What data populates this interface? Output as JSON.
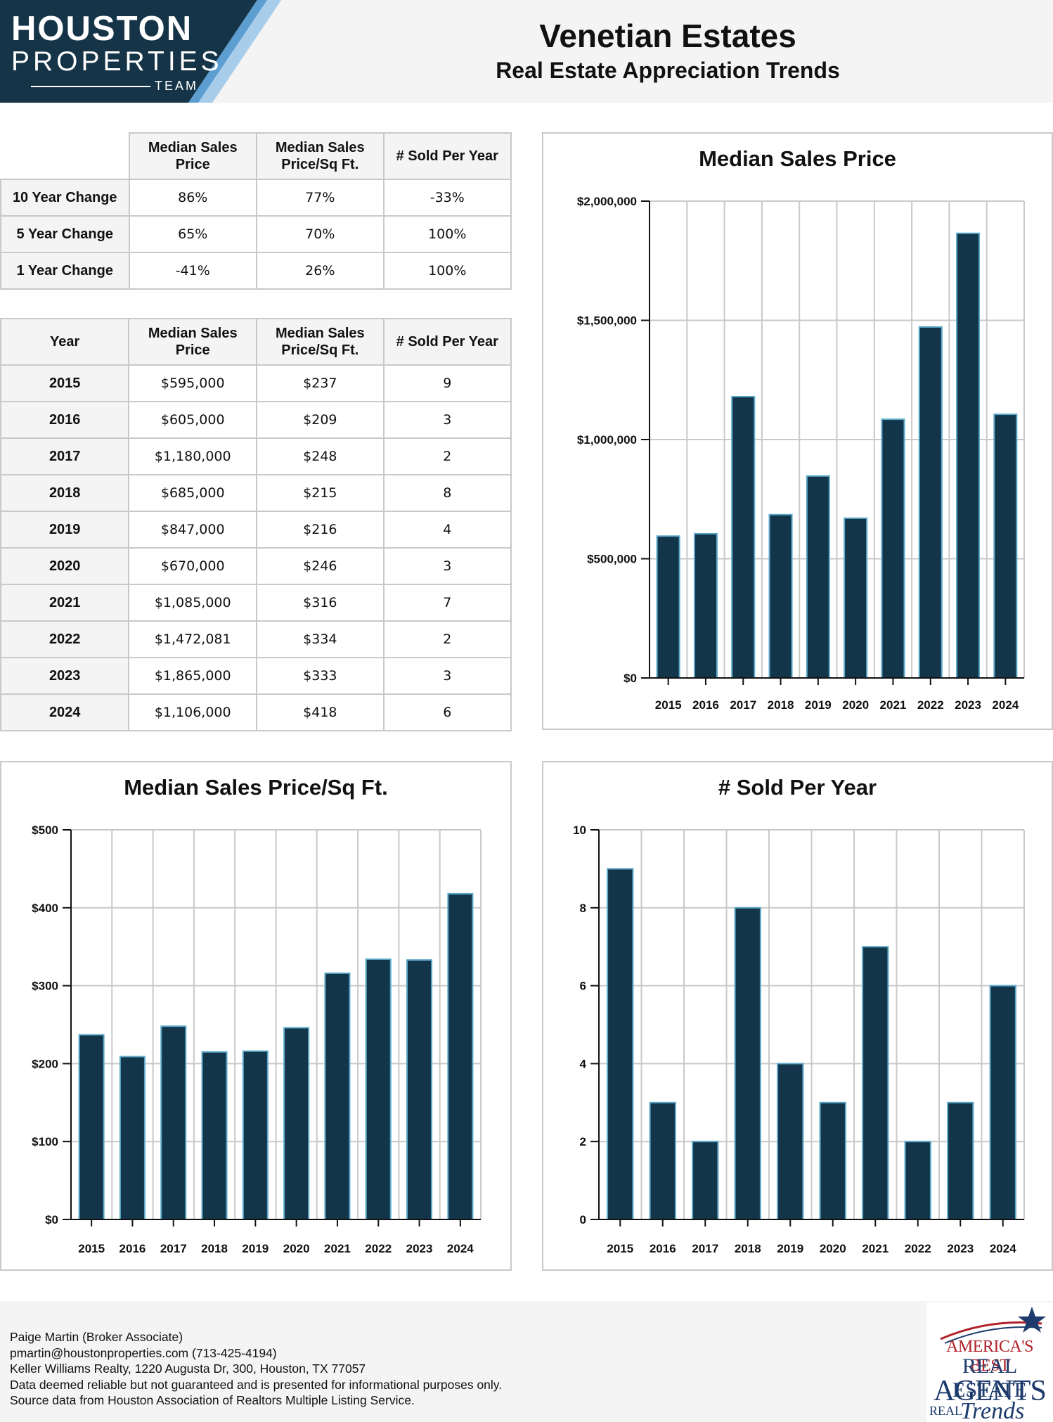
{
  "header": {
    "logo": {
      "line1": "HOUSTON",
      "line2": "PROPERTIES",
      "line3": "TEAM"
    },
    "title": "Venetian Estates",
    "subtitle": "Real Estate Appreciation Trends"
  },
  "change_table": {
    "headers": [
      "",
      "Median Sales Price",
      "Median Sales Price/Sq Ft.",
      "# Sold Per Year"
    ],
    "rows": [
      {
        "label": "10 Year Change",
        "values": [
          "86%",
          "77%",
          "-33%"
        ]
      },
      {
        "label": "5 Year Change",
        "values": [
          "65%",
          "70%",
          "100%"
        ]
      },
      {
        "label": "1 Year Change",
        "values": [
          "-41%",
          "26%",
          "100%"
        ]
      }
    ]
  },
  "year_table": {
    "headers": [
      "Year",
      "Median Sales Price",
      "Median Sales Price/Sq Ft.",
      "# Sold Per Year"
    ],
    "rows": [
      {
        "label": "2015",
        "values": [
          "$595,000",
          "$237",
          "9"
        ]
      },
      {
        "label": "2016",
        "values": [
          "$605,000",
          "$209",
          "3"
        ]
      },
      {
        "label": "2017",
        "values": [
          "$1,180,000",
          "$248",
          "2"
        ]
      },
      {
        "label": "2018",
        "values": [
          "$685,000",
          "$215",
          "8"
        ]
      },
      {
        "label": "2019",
        "values": [
          "$847,000",
          "$216",
          "4"
        ]
      },
      {
        "label": "2020",
        "values": [
          "$670,000",
          "$246",
          "3"
        ]
      },
      {
        "label": "2021",
        "values": [
          "$1,085,000",
          "$316",
          "7"
        ]
      },
      {
        "label": "2022",
        "values": [
          "$1,472,081",
          "$334",
          "2"
        ]
      },
      {
        "label": "2023",
        "values": [
          "$1,865,000",
          "$333",
          "3"
        ]
      },
      {
        "label": "2024",
        "values": [
          "$1,106,000",
          "$418",
          "6"
        ]
      }
    ]
  },
  "chart_data": [
    {
      "id": "price",
      "type": "bar",
      "title": "Median Sales Price",
      "categories": [
        "2015",
        "2016",
        "2017",
        "2018",
        "2019",
        "2020",
        "2021",
        "2022",
        "2023",
        "2024"
      ],
      "values": [
        595000,
        605000,
        1180000,
        685000,
        847000,
        670000,
        1085000,
        1472081,
        1865000,
        1106000
      ],
      "ylim": [
        0,
        2000000
      ],
      "yticks": [
        0,
        500000,
        1000000,
        1500000,
        2000000
      ],
      "ytick_labels": [
        "$0",
        "$500,000",
        "$1,000,000",
        "$1,500,000",
        "$2,000,000"
      ],
      "grid": true,
      "bar_color": "#12354a",
      "bar_edge_color": "#5ba8c8"
    },
    {
      "id": "sqft",
      "type": "bar",
      "title": "Median Sales Price/Sq Ft.",
      "categories": [
        "2015",
        "2016",
        "2017",
        "2018",
        "2019",
        "2020",
        "2021",
        "2022",
        "2023",
        "2024"
      ],
      "values": [
        237,
        209,
        248,
        215,
        216,
        246,
        316,
        334,
        333,
        418
      ],
      "ylim": [
        0,
        500
      ],
      "yticks": [
        0,
        100,
        200,
        300,
        400,
        500
      ],
      "ytick_labels": [
        "$0",
        "$100",
        "$200",
        "$300",
        "$400",
        "$500"
      ],
      "grid": true,
      "bar_color": "#12354a",
      "bar_edge_color": "#5ba8c8"
    },
    {
      "id": "sold",
      "type": "bar",
      "title": "# Sold Per Year",
      "categories": [
        "2015",
        "2016",
        "2017",
        "2018",
        "2019",
        "2020",
        "2021",
        "2022",
        "2023",
        "2024"
      ],
      "values": [
        9,
        3,
        2,
        8,
        4,
        3,
        7,
        2,
        3,
        6
      ],
      "ylim": [
        0,
        10
      ],
      "yticks": [
        0,
        2,
        4,
        6,
        8,
        10
      ],
      "ytick_labels": [
        "0",
        "2",
        "4",
        "6",
        "8",
        "10"
      ],
      "grid": true,
      "bar_color": "#12354a",
      "bar_edge_color": "#5ba8c8"
    }
  ],
  "footer": {
    "lines": [
      "Paige Martin (Broker Associate)",
      "pmartin@houstonproperties.com (713-425-4194)",
      "Keller Williams Realty, 1220 Augusta Dr, 300, Houston, TX 77057",
      "Data deemed reliable but not guaranteed and is presented for informational purposes only.",
      "Source data from Houston Association of Realtors Multiple Listing Service."
    ],
    "badge": {
      "line1": "AMERICA'S BEST",
      "line2": "REAL ESTATE",
      "line3": "AGENTS",
      "line4": "REAL",
      "line5": "Trends"
    }
  },
  "colors": {
    "logo_bg": "#163447",
    "logo_stripe_light": "#a8cdeb",
    "logo_stripe_mid": "#5d9ed1",
    "header_bg": "#f4f4f4"
  }
}
